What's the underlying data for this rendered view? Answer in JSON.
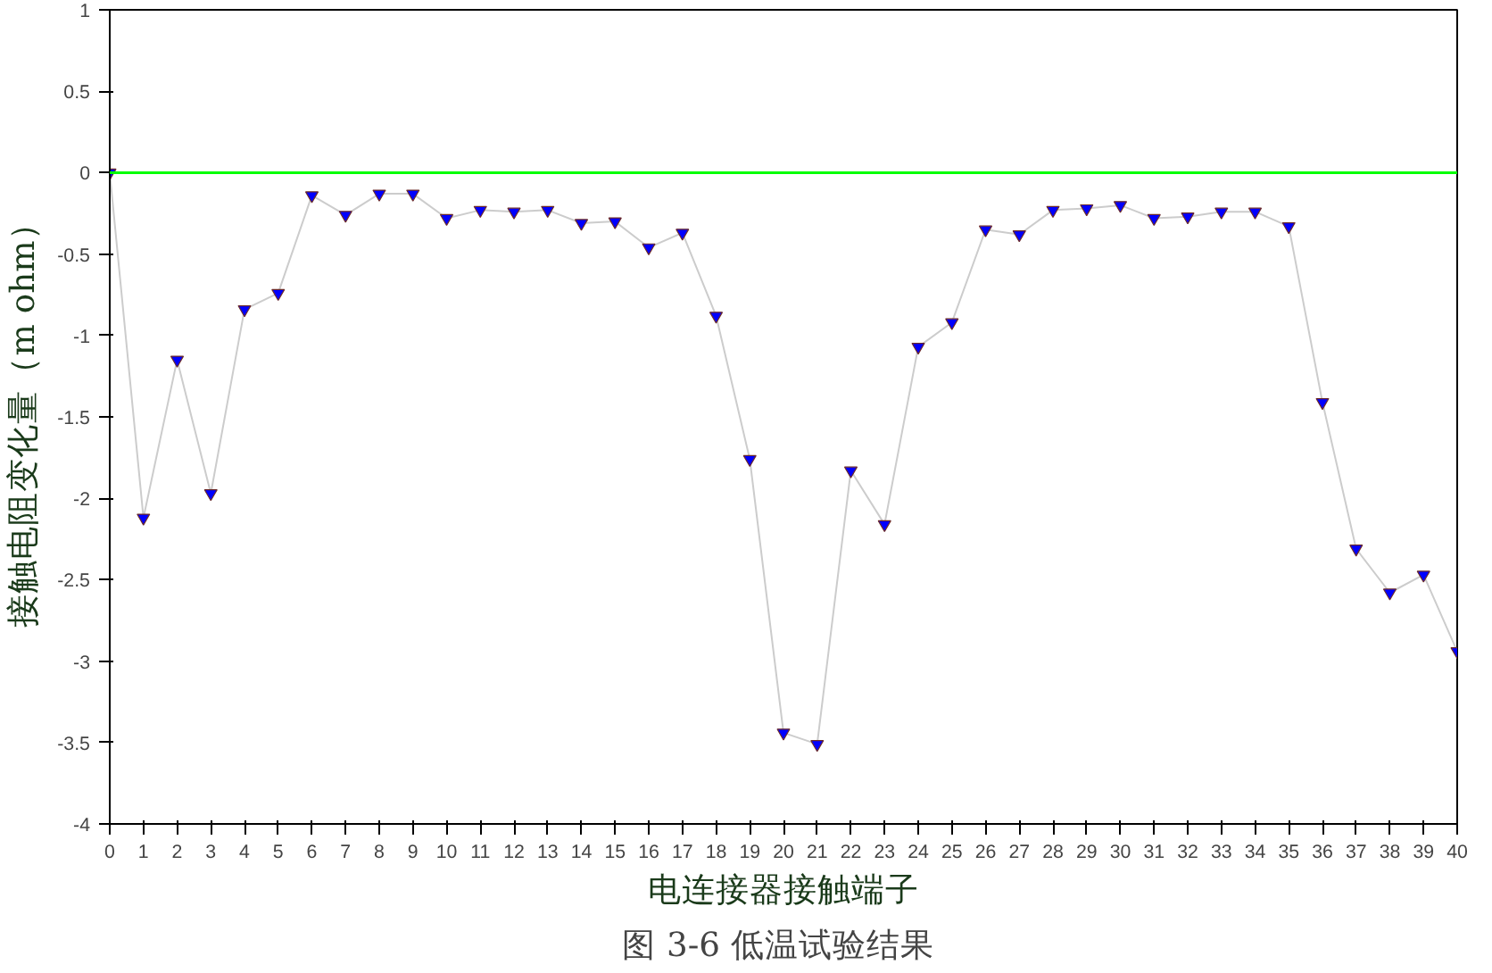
{
  "chart_data": {
    "type": "line",
    "xlabel": "电连接器接触端子",
    "ylabel": "接触电阻变化量（m ohm）",
    "annotations": [
      "图 3-6  低温试验结果"
    ],
    "x": [
      0,
      1,
      2,
      3,
      4,
      5,
      6,
      7,
      8,
      9,
      10,
      11,
      12,
      13,
      14,
      15,
      16,
      17,
      18,
      19,
      20,
      21,
      22,
      23,
      24,
      25,
      26,
      27,
      28,
      29,
      30,
      31,
      32,
      33,
      34,
      35,
      36,
      37,
      38,
      39,
      40
    ],
    "series": [
      {
        "color": "#0000ff",
        "values": [
          0,
          -2.12,
          -1.15,
          -1.97,
          -0.84,
          -0.74,
          -0.14,
          -0.26,
          -0.13,
          -0.13,
          -0.28,
          -0.23,
          -0.24,
          -0.23,
          -0.31,
          -0.3,
          -0.46,
          -0.37,
          -0.88,
          -1.76,
          -3.44,
          -3.51,
          -1.83,
          -2.16,
          -1.07,
          -0.92,
          -0.35,
          -0.38,
          -0.23,
          -0.22,
          -0.2,
          -0.28,
          -0.27,
          -0.24,
          -0.24,
          -0.33,
          -1.41,
          -2.31,
          -2.58,
          -2.47,
          -2.94
        ]
      }
    ],
    "xlim": [
      0,
      40
    ],
    "ylim": [
      -4,
      1
    ],
    "xticks": [
      0,
      1,
      2,
      3,
      4,
      5,
      6,
      7,
      8,
      9,
      10,
      11,
      12,
      13,
      14,
      15,
      16,
      17,
      18,
      19,
      20,
      21,
      22,
      23,
      24,
      25,
      26,
      27,
      28,
      29,
      30,
      31,
      32,
      33,
      34,
      35,
      36,
      37,
      38,
      39,
      40
    ],
    "yticks": [
      -4,
      -3.5,
      -3,
      -2.5,
      -2,
      -1.5,
      -1,
      -0.5,
      0,
      0.5,
      1
    ],
    "ref_lines": [
      {
        "axis": "y",
        "value": 0,
        "color": "#00ff00"
      }
    ],
    "marker": "triangle",
    "grid": false
  }
}
